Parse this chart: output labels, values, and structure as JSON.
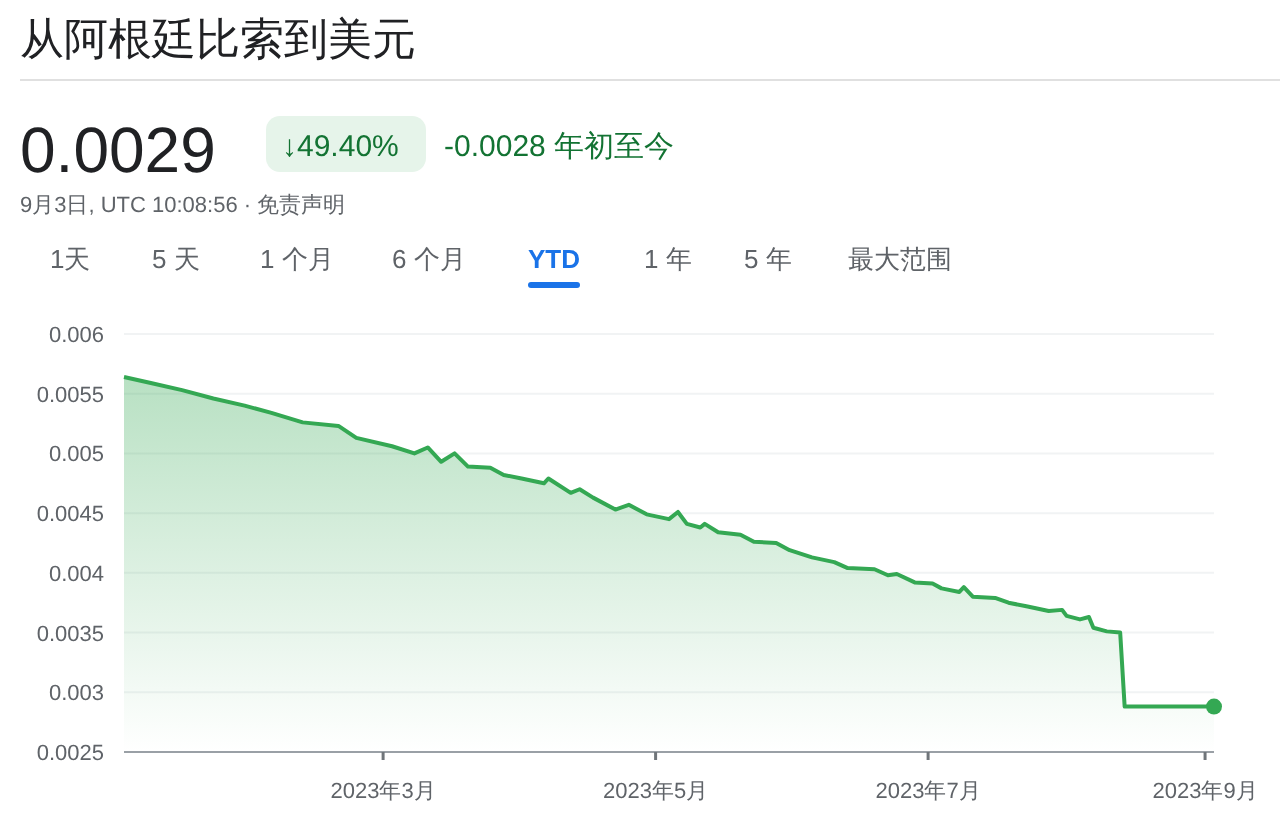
{
  "chart_data": {
    "type": "area",
    "title": "从阿根廷比索到美元",
    "annotations": [
      "0.0029",
      "↓49.40%",
      "-0.0028 年初至今",
      "9月3日, UTC 10:08:56 · 免责声明",
      "1天",
      "5 天",
      "1 个月",
      "6 个月",
      "YTD",
      "1 年",
      "5 年",
      "最大范围"
    ],
    "series": [
      {
        "color": "#34a853",
        "x": [
          "2023-01-02",
          "2023-01-08",
          "2023-01-15",
          "2023-01-22",
          "2023-01-29",
          "2023-02-04",
          "2023-02-11",
          "2023-02-19",
          "2023-02-23",
          "2023-03-03",
          "2023-03-08",
          "2023-03-11",
          "2023-03-14",
          "2023-03-17",
          "2023-03-20",
          "2023-03-25",
          "2023-03-28",
          "2023-04-01",
          "2023-04-06",
          "2023-04-07",
          "2023-04-12",
          "2023-04-14",
          "2023-04-17",
          "2023-04-22",
          "2023-04-25",
          "2023-04-29",
          "2023-05-04",
          "2023-05-06",
          "2023-05-08",
          "2023-05-11",
          "2023-05-12",
          "2023-05-15",
          "2023-05-20",
          "2023-05-23",
          "2023-05-28",
          "2023-05-31",
          "2023-06-05",
          "2023-06-10",
          "2023-06-13",
          "2023-06-19",
          "2023-06-22",
          "2023-06-24",
          "2023-06-28",
          "2023-07-02",
          "2023-07-04",
          "2023-07-08",
          "2023-07-09",
          "2023-07-11",
          "2023-07-16",
          "2023-07-19",
          "2023-07-23",
          "2023-07-28",
          "2023-07-31",
          "2023-08-01",
          "2023-08-04",
          "2023-08-06",
          "2023-08-07",
          "2023-08-10",
          "2023-08-13",
          "2023-08-14",
          "2023-08-18",
          "2023-09-03"
        ],
        "values": [
          0.00564,
          0.00559,
          0.00553,
          0.00546,
          0.0054,
          0.00534,
          0.00526,
          0.00523,
          0.00513,
          0.00506,
          0.005,
          0.00505,
          0.00493,
          0.005,
          0.00489,
          0.00488,
          0.00482,
          0.00479,
          0.00475,
          0.00479,
          0.00467,
          0.0047,
          0.00463,
          0.00453,
          0.00457,
          0.00449,
          0.00445,
          0.00451,
          0.00441,
          0.00438,
          0.00441,
          0.00434,
          0.00432,
          0.00426,
          0.00425,
          0.00419,
          0.00413,
          0.00409,
          0.00404,
          0.00403,
          0.00398,
          0.00399,
          0.00392,
          0.00391,
          0.00387,
          0.00384,
          0.00388,
          0.0038,
          0.00379,
          0.00375,
          0.00372,
          0.00368,
          0.00369,
          0.00364,
          0.00361,
          0.00363,
          0.00354,
          0.00351,
          0.0035,
          0.00288,
          0.00288,
          0.00288
        ]
      }
    ],
    "xlim": [
      "2023-01-02",
      "2023-09-03"
    ],
    "xticks": [
      {
        "value": "2023-03-01",
        "label": "2023年3月"
      },
      {
        "value": "2023-05-01",
        "label": "2023年5月"
      },
      {
        "value": "2023-07-01",
        "label": "2023年7月"
      },
      {
        "value": "2023-09-01",
        "label": "2023年9月"
      }
    ],
    "ylim": [
      0.0025,
      0.006
    ],
    "yticks": [
      0.0025,
      0.003,
      0.0035,
      0.004,
      0.0045,
      0.005,
      0.0055,
      0.006
    ],
    "grid": "y"
  }
}
